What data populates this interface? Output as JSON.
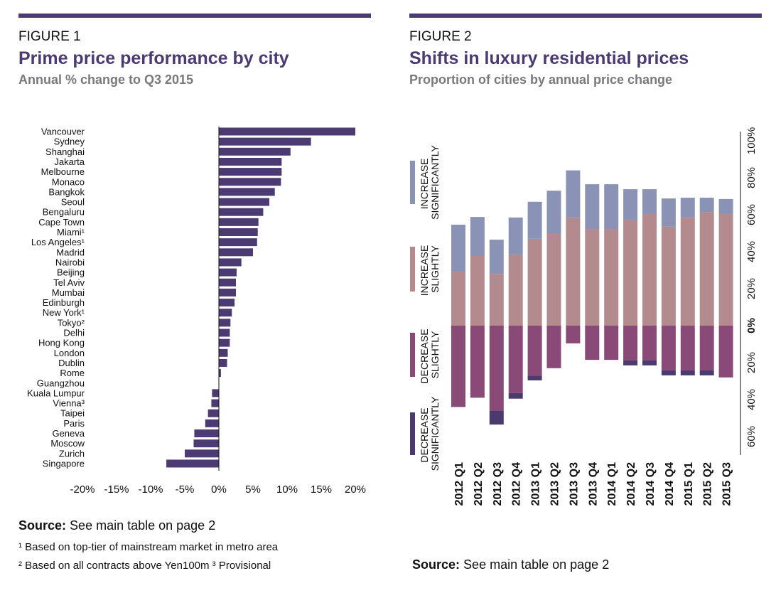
{
  "chart_data": [
    {
      "type": "bar",
      "horizontal": true,
      "figure": "FIGURE 1",
      "title": "Prime price performance by city",
      "subtitle": "Annual % change to Q3 2015",
      "categories": [
        "Vancouver",
        "Sydney",
        "Shanghai",
        "Jakarta",
        "Melbourne",
        "Monaco",
        "Bangkok",
        "Seoul",
        "Bengaluru",
        "Cape Town",
        "Miami¹",
        "Los Angeles¹",
        "Madrid",
        "Nairobi",
        "Beijing",
        "Tel Aviv",
        "Mumbai",
        "Edinburgh",
        "New York¹",
        "Tokyo²",
        "Delhi",
        "Hong Kong",
        "London",
        "Dublin",
        "Rome",
        "Guangzhou",
        "Kuala Lumpur",
        "Vienna³",
        "Taipei",
        "Paris",
        "Geneva",
        "Moscow",
        "Zurich",
        "Singapore"
      ],
      "values": [
        20,
        13.5,
        10.5,
        9.2,
        9.2,
        9.1,
        8.2,
        7.4,
        6.5,
        5.8,
        5.7,
        5.6,
        5.0,
        3.3,
        2.6,
        2.5,
        2.5,
        2.3,
        1.9,
        1.7,
        1.6,
        1.6,
        1.3,
        1.2,
        0.3,
        0,
        -1.0,
        -1.1,
        -1.6,
        -2.0,
        -3.6,
        -3.7,
        -5.0,
        -7.7
      ],
      "color": "#4b3b72",
      "xlim": [
        -20,
        20
      ],
      "xticks": [
        {
          "value": -20,
          "label": "-20%"
        },
        {
          "value": -15,
          "label": "-15%"
        },
        {
          "value": -10,
          "label": "-10%"
        },
        {
          "value": -5,
          "label": "-5%"
        },
        {
          "value": 0,
          "label": "0%"
        },
        {
          "value": 5,
          "label": "5%"
        },
        {
          "value": 10,
          "label": "10%"
        },
        {
          "value": 15,
          "label": "15%"
        },
        {
          "value": 20,
          "label": "20%"
        }
      ],
      "grid": false,
      "source_label": "Source:",
      "source": "See main table on page 2",
      "footnotes": [
        "¹ Based on top-tier of mainstream market in metro area",
        "² Based on all contracts above Yen100m ³ Provisional"
      ]
    },
    {
      "type": "stacked-bar",
      "figure": "FIGURE 2",
      "title": "Shifts in luxury residential prices",
      "subtitle": "Proportion of cities by annual price change",
      "categories": [
        "2012 Q1",
        "2012 Q2",
        "2012 Q3",
        "2012 Q4",
        "2013 Q1",
        "2013 Q2",
        "2013 Q3",
        "2013 Q4",
        "2014 Q1",
        "2014 Q2",
        "2014 Q3",
        "2014 Q4",
        "2015 Q1",
        "2015 Q2",
        "2015 Q3"
      ],
      "series": [
        {
          "name": "INCREASE SLIGHTLY",
          "color": "#b38a8d",
          "values": [
            29.2,
            37.7,
            28,
            38.5,
            47,
            49.6,
            58.5,
            52.3,
            52.3,
            57.7,
            60.4,
            53.5,
            58.8,
            61.5,
            60.4
          ]
        },
        {
          "name": "INCREASE SIGNIFICANTLY",
          "color": "#8a93b5",
          "values": [
            25.4,
            21.1,
            18.5,
            20,
            20,
            23.4,
            25.5,
            24.2,
            24.2,
            16.1,
            13.4,
            15.3,
            10.4,
            7.7,
            8.1
          ]
        },
        {
          "name": "DECREASE SLIGHTLY",
          "color": "#8a4a78",
          "values": [
            -44,
            -39,
            -46,
            -36.5,
            -27,
            -23,
            -9.6,
            -18.5,
            -18.5,
            -18.8,
            -18.8,
            -24.2,
            -24.2,
            -24.2,
            -28
          ]
        },
        {
          "name": "DECREASE SIGNIFICANTLY",
          "color": "#4b3a6e",
          "values": [
            0,
            0,
            -7.5,
            -3,
            -2.6,
            0,
            0,
            0,
            0,
            -2.7,
            -2.7,
            -2.7,
            -2.7,
            -2.7,
            0
          ]
        }
      ],
      "legend_order": [
        1,
        0,
        2,
        3
      ],
      "ylim": [
        -70,
        105
      ],
      "yticks": [
        {
          "value": 100,
          "label": "100%"
        },
        {
          "value": 80,
          "label": "80%"
        },
        {
          "value": 60,
          "label": "60%"
        },
        {
          "value": 40,
          "label": "40%"
        },
        {
          "value": 20,
          "label": "20%"
        },
        {
          "value": 0,
          "label": "0%"
        },
        {
          "value": -20,
          "label": "20%"
        },
        {
          "value": -40,
          "label": "40%"
        },
        {
          "value": -60,
          "label": "60%"
        }
      ],
      "grid": false,
      "source_label": "Source:",
      "source": "See main table on page 2"
    }
  ]
}
